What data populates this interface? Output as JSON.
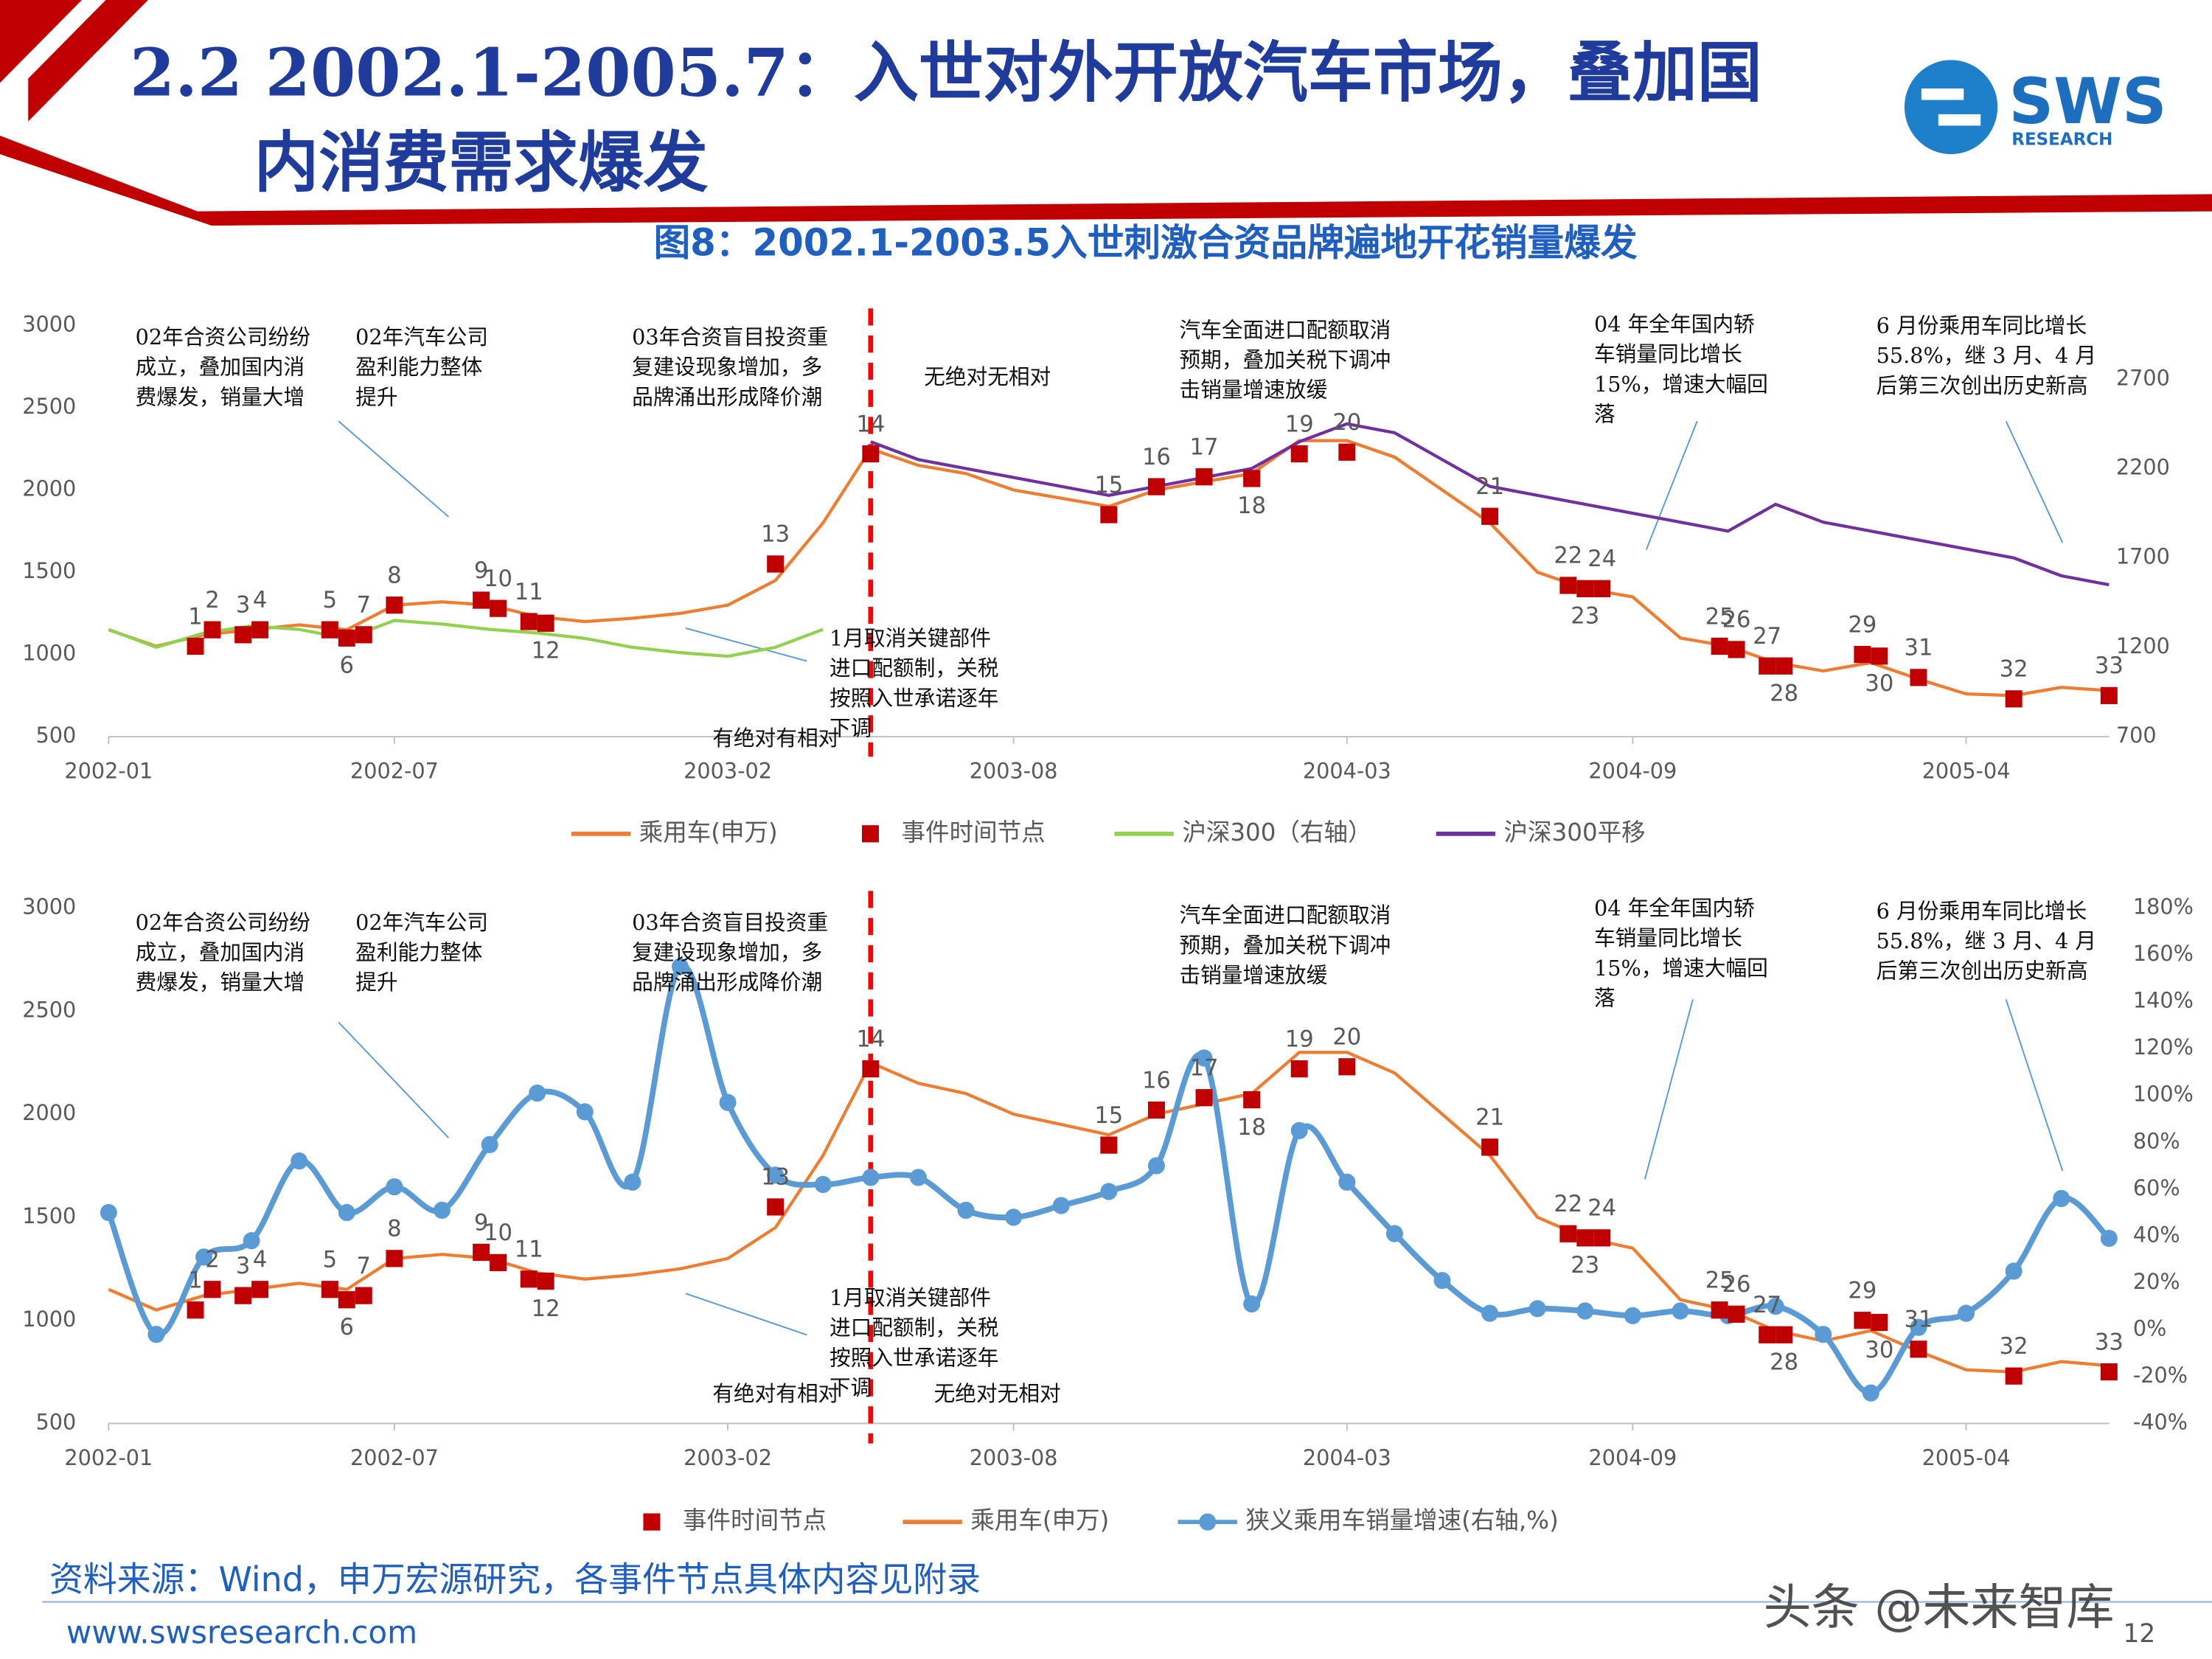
{
  "header": {
    "title": [
      "2.2 2002.1-2005.7：入世对外开放汽车市场，叠加国",
      "内消费需求爆发"
    ],
    "logo": "SWS",
    "logo_sub": "RESEARCH"
  },
  "chart_data": [
    {
      "type": "line",
      "title": "图8：2002.1-2003.5入世刺激合资品牌遍地开花销量爆发",
      "x": [
        "2002-01",
        "2002-02",
        "2002-03",
        "2002-04",
        "2002-05",
        "2002-06",
        "2002-07",
        "2002-08",
        "2002-09",
        "2002-10",
        "2002-11",
        "2002-12",
        "2003-01",
        "2003-02",
        "2003-03",
        "2003-04",
        "2003-05",
        "2003-06",
        "2003-07",
        "2003-08",
        "2003-09",
        "2003-10",
        "2003-11",
        "2003-12",
        "2004-01",
        "2004-02",
        "2004-03",
        "2004-04",
        "2004-05",
        "2004-06",
        "2004-07",
        "2004-08",
        "2004-09",
        "2004-10",
        "2004-11",
        "2004-12",
        "2005-01",
        "2005-02",
        "2005-03",
        "2005-04",
        "2005-05",
        "2005-06",
        "2005-07"
      ],
      "xticks": [
        "2002-01",
        "2002-07",
        "2003-02",
        "2003-08",
        "2004-03",
        "2004-09",
        "2005-04"
      ],
      "ylim": [
        500,
        3000
      ],
      "yticks": [
        500,
        1000,
        1500,
        2000,
        2500,
        3000
      ],
      "y2lim": [
        700,
        3000
      ],
      "y2ticks": [
        700,
        1200,
        1700,
        2200,
        2700
      ],
      "divider_x": "2003-05",
      "series": [
        {
          "name": "乘用车(申万)",
          "color": "#ED7D31",
          "values": [
            1150,
            1050,
            1120,
            1150,
            1180,
            1150,
            1300,
            1320,
            1300,
            1230,
            1200,
            1220,
            1250,
            1300,
            1450,
            1800,
            2250,
            2150,
            2100,
            2000,
            1950,
            1900,
            2000,
            2050,
            2100,
            2300,
            2300,
            2200,
            2000,
            1800,
            1500,
            1400,
            1350,
            1100,
            1050,
            950,
            900,
            950,
            850,
            760,
            750,
            800,
            780
          ]
        },
        {
          "name": "事件时间节点",
          "type": "scatter",
          "color": "#C00000",
          "x": [
            "2002-03",
            "2002-03",
            "2002-04",
            "2002-04",
            "2002-06",
            "2002-06",
            "2002-06",
            "2002-07",
            "2002-09",
            "2002-09",
            "2002-10",
            "2002-10",
            "2003-03",
            "2003-05",
            "2003-10",
            "2003-11",
            "2003-12",
            "2004-01",
            "2004-02",
            "2004-03",
            "2004-06",
            "2004-08",
            "2004-08",
            "2004-08",
            "2004-11",
            "2004-11",
            "2004-12",
            "2004-12",
            "2005-02",
            "2005-02",
            "2005-03",
            "2005-05",
            "2005-07"
          ],
          "values": [
            1050,
            1150,
            1120,
            1150,
            1150,
            1100,
            1120,
            1300,
            1330,
            1280,
            1200,
            1190,
            1550,
            2220,
            1850,
            2020,
            2080,
            2070,
            2220,
            2230,
            1840,
            1420,
            1400,
            1400,
            1050,
            1030,
            930,
            930,
            1000,
            990,
            860,
            730,
            750
          ],
          "labels": [
            "1",
            "2",
            "3",
            "4",
            "5",
            "6",
            "7",
            "8",
            "9",
            "10",
            "11",
            "12",
            "13",
            "14",
            "15",
            "16",
            "17",
            "18",
            "19",
            "20",
            "21",
            "22",
            "23",
            "24",
            "25",
            "26",
            "27",
            "28",
            "29",
            "30",
            "31",
            "32",
            "33"
          ]
        },
        {
          "name": "沪深300（右轴）",
          "color": "#92D050",
          "axis": "y2",
          "values": [
            1300,
            1200,
            1280,
            1320,
            1300,
            1250,
            1350,
            1330,
            1300,
            1280,
            1250,
            1200,
            1170,
            1150,
            1200,
            1300,
            null,
            null,
            null,
            null,
            null,
            null,
            null,
            null,
            null,
            null,
            null,
            null,
            null,
            null,
            null,
            null,
            null,
            null,
            null,
            null,
            null,
            null,
            null,
            null,
            null,
            null,
            null
          ]
        },
        {
          "name": "沪深300平移",
          "color": "#7030A0",
          "axis": "y2",
          "values": [
            null,
            null,
            null,
            null,
            null,
            null,
            null,
            null,
            null,
            null,
            null,
            null,
            null,
            null,
            null,
            null,
            2350,
            2250,
            2200,
            2150,
            2100,
            2050,
            2100,
            2150,
            2200,
            2350,
            2450,
            2400,
            2250,
            2100,
            2050,
            2000,
            1950,
            1900,
            1850,
            2000,
            1900,
            1850,
            1800,
            1750,
            1700,
            1600,
            1550
          ]
        }
      ],
      "annotations": [
        {
          "lines": [
            "02年合资公司纷纷",
            "成立，叠加国内消",
            "费爆发，销量大增"
          ]
        },
        {
          "lines": [
            "02年汽车公司",
            "盈利能力整体",
            "提升"
          ]
        },
        {
          "lines": [
            "03年合资盲目投资重",
            "复建设现象增加，多",
            "品牌涌出形成降价潮"
          ]
        },
        {
          "lines": [
            "汽车全面进口配额取消",
            "预期，叠加关税下调冲",
            "击销量增速放缓"
          ]
        },
        {
          "lines": [
            "04 年全年国内轿",
            "车销量同比增长",
            "15%，增速大幅回",
            "落"
          ]
        },
        {
          "lines": [
            "6 月份乘用车同比增长",
            "55.8%，继 3 月、4 月",
            "后第三次创出历史新高"
          ]
        },
        {
          "lines": [
            "1月取消关键部件",
            "进口配额制，关税",
            "按照入世承诺逐年",
            "下调"
          ]
        },
        {
          "lines": [
            "有绝对有相对"
          ],
          "color": "#E00000"
        },
        {
          "lines": [
            "无绝对无相对"
          ],
          "color": "#2EA02E"
        }
      ]
    },
    {
      "type": "line",
      "x": [
        "2002-01",
        "2002-02",
        "2002-03",
        "2002-04",
        "2002-05",
        "2002-06",
        "2002-07",
        "2002-08",
        "2002-09",
        "2002-10",
        "2002-11",
        "2002-12",
        "2003-01",
        "2003-02",
        "2003-03",
        "2003-04",
        "2003-05",
        "2003-06",
        "2003-07",
        "2003-08",
        "2003-09",
        "2003-10",
        "2003-11",
        "2003-12",
        "2004-01",
        "2004-02",
        "2004-03",
        "2004-04",
        "2004-05",
        "2004-06",
        "2004-07",
        "2004-08",
        "2004-09",
        "2004-10",
        "2004-11",
        "2004-12",
        "2005-01",
        "2005-02",
        "2005-03",
        "2005-04",
        "2005-05",
        "2005-06",
        "2005-07"
      ],
      "xticks": [
        "2002-01",
        "2002-07",
        "2003-02",
        "2003-08",
        "2004-03",
        "2004-09",
        "2005-04"
      ],
      "ylim": [
        500,
        3000
      ],
      "yticks": [
        500,
        1000,
        1500,
        2000,
        2500,
        3000
      ],
      "y2lim": [
        -40,
        180
      ],
      "y2ticks": [
        {
          "value": -40,
          "label": "-40%"
        },
        {
          "value": -20,
          "label": "-20%"
        },
        {
          "value": 0,
          "label": "0%"
        },
        {
          "value": 20,
          "label": "20%"
        },
        {
          "value": 40,
          "label": "40%"
        },
        {
          "value": 60,
          "label": "60%"
        },
        {
          "value": 80,
          "label": "80%"
        },
        {
          "value": 100,
          "label": "100%"
        },
        {
          "value": 120,
          "label": "120%"
        },
        {
          "value": 140,
          "label": "140%"
        },
        {
          "value": 160,
          "label": "160%"
        },
        {
          "value": 180,
          "label": "180%"
        }
      ],
      "divider_x": "2003-05",
      "series": [
        {
          "name": "事件时间节点",
          "type": "scatter",
          "color": "#C00000",
          "x": [
            "2002-03",
            "2002-03",
            "2002-04",
            "2002-04",
            "2002-06",
            "2002-06",
            "2002-06",
            "2002-07",
            "2002-09",
            "2002-09",
            "2002-10",
            "2002-10",
            "2003-03",
            "2003-05",
            "2003-10",
            "2003-11",
            "2003-12",
            "2004-01",
            "2004-02",
            "2004-03",
            "2004-06",
            "2004-08",
            "2004-08",
            "2004-08",
            "2004-11",
            "2004-11",
            "2004-12",
            "2004-12",
            "2005-02",
            "2005-02",
            "2005-03",
            "2005-05",
            "2005-07"
          ],
          "values": [
            1050,
            1150,
            1120,
            1150,
            1150,
            1100,
            1120,
            1300,
            1330,
            1280,
            1200,
            1190,
            1550,
            2220,
            1850,
            2020,
            2080,
            2070,
            2220,
            2230,
            1840,
            1420,
            1400,
            1400,
            1050,
            1030,
            930,
            930,
            1000,
            990,
            860,
            730,
            750
          ],
          "labels": [
            "1",
            "2",
            "3",
            "4",
            "5",
            "6",
            "7",
            "8",
            "9",
            "10",
            "11",
            "12",
            "13",
            "14",
            "15",
            "16",
            "17",
            "18",
            "19",
            "20",
            "21",
            "22",
            "23",
            "24",
            "25",
            "26",
            "27",
            "28",
            "29",
            "30",
            "31",
            "32",
            "33"
          ]
        },
        {
          "name": "乘用车(申万)",
          "color": "#ED7D31",
          "values": [
            1150,
            1050,
            1120,
            1150,
            1180,
            1150,
            1300,
            1320,
            1300,
            1230,
            1200,
            1220,
            1250,
            1300,
            1450,
            1800,
            2250,
            2150,
            2100,
            2000,
            1950,
            1900,
            2000,
            2050,
            2100,
            2300,
            2300,
            2200,
            2000,
            1800,
            1500,
            1400,
            1350,
            1100,
            1050,
            950,
            900,
            950,
            850,
            760,
            750,
            800,
            780
          ]
        },
        {
          "name": "狭义乘用车销量增速(右轴,%)",
          "color": "#5B9BD5",
          "axis": "y2",
          "marker": true,
          "smooth": true,
          "values": [
            50,
            -2,
            31,
            38,
            72,
            50,
            61,
            51,
            79,
            101,
            93,
            63,
            155,
            97,
            66,
            62,
            65,
            65,
            51,
            48,
            53,
            59,
            70,
            116,
            11,
            85,
            63,
            41,
            21,
            7,
            9,
            8,
            6,
            8,
            6,
            10,
            -2,
            -27,
            1,
            7,
            25,
            56,
            39
          ]
        }
      ],
      "annotations": [
        {
          "lines": [
            "02年合资公司纷纷",
            "成立，叠加国内消",
            "费爆发，销量大增"
          ]
        },
        {
          "lines": [
            "02年汽车公司",
            "盈利能力整体",
            "提升"
          ]
        },
        {
          "lines": [
            "03年合资盲目投资重",
            "复建设现象增加，多",
            "品牌涌出形成降价潮"
          ]
        },
        {
          "lines": [
            "汽车全面进口配额取消",
            "预期，叠加关税下调冲",
            "击销量增速放缓"
          ]
        },
        {
          "lines": [
            "04 年全年国内轿",
            "车销量同比增长",
            "15%，增速大幅回",
            "落"
          ]
        },
        {
          "lines": [
            "6 月份乘用车同比增长",
            "55.8%，继 3 月、4 月",
            "后第三次创出历史新高"
          ]
        },
        {
          "lines": [
            "1月取消关键部件",
            "进口配额制，关税",
            "按照入世承诺逐年",
            "下调"
          ]
        },
        {
          "lines": [
            "有绝对有相对"
          ],
          "color": "#E00000"
        },
        {
          "lines": [
            "无绝对无相对"
          ],
          "color": "#2EA02E"
        }
      ]
    }
  ],
  "footer": {
    "source": "资料来源：Wind，申万宏源研究，各事件节点具体内容见附录",
    "url": "www.swsresearch.com",
    "page": "12",
    "watermark": "头条 @未来智库"
  }
}
